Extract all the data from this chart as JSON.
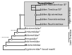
{
  "title": "Termitidae*",
  "subfamilies_box": [
    "Subfam. Macrotermitinae (S)*",
    "Subfam. Termitinae (S)*",
    "Subfam. Apicotermitinae",
    "Subfam. Foraminitermitinae",
    "Subfam. Nasutitermitinae"
  ],
  "families": [
    "Rhinotermitidae*",
    "Serritermitidae*",
    "Kalotermitidae*",
    "Termopsidae*",
    "Hodotermitidae",
    "Mastotermitidae",
    "Cryptocercidae* (wood roach)"
  ],
  "right_label_top": "Higher Termitidae",
  "right_label_bottom": "Lower Termitidae",
  "node_label_110": "~110 mya",
  "node_label_50": "~50 mya",
  "line_color": "#2a2a2a",
  "text_color": "#111111",
  "box_bg": "#d8d8d8",
  "box_edge": "#888888",
  "fig_bg": "#ffffff"
}
